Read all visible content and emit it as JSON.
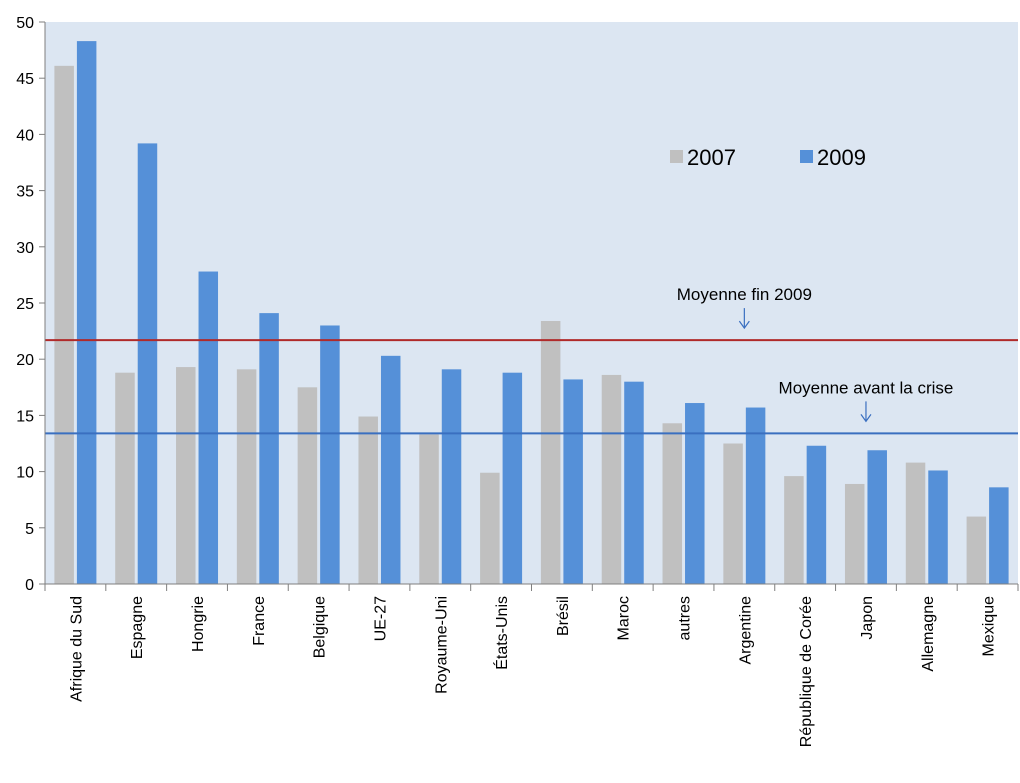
{
  "chart_data": {
    "type": "bar",
    "title": "",
    "xlabel": "",
    "ylabel": "",
    "ylim": [
      0,
      50
    ],
    "yticks": [
      0,
      5,
      10,
      15,
      20,
      25,
      30,
      35,
      40,
      45,
      50
    ],
    "grid": false,
    "plot_background": "#dce6f2",
    "legend_position": "top-right",
    "categories": [
      "Afrique du Sud",
      "Espagne",
      "Hongrie",
      "France",
      "Belgique",
      "UE-27",
      "Royaume-Uni",
      "États-Unis",
      "Brésil",
      "Maroc",
      "autres",
      "Argentine",
      "République de Corée",
      "Japon",
      "Allemagne",
      "Mexique"
    ],
    "series": [
      {
        "name": "2007",
        "color": "#c0c0c0",
        "values": [
          46.1,
          18.8,
          19.3,
          19.1,
          17.5,
          14.9,
          13.3,
          9.9,
          23.4,
          18.6,
          14.3,
          12.5,
          9.6,
          8.9,
          10.8,
          6.0
        ]
      },
      {
        "name": "2009",
        "color": "#5590d8",
        "values": [
          48.3,
          39.2,
          27.8,
          24.1,
          23.0,
          20.3,
          19.1,
          18.8,
          18.2,
          18.0,
          16.1,
          15.7,
          12.3,
          11.9,
          10.1,
          8.6
        ]
      }
    ],
    "reference_lines": [
      {
        "label": "Moyenne fin 2009",
        "value": 21.7,
        "color": "#b02a2a",
        "label_category_index": 11
      },
      {
        "label": "Moyenne avant la crise",
        "value": 13.4,
        "color": "#3a6fc0",
        "label_category_index": 13
      }
    ]
  }
}
